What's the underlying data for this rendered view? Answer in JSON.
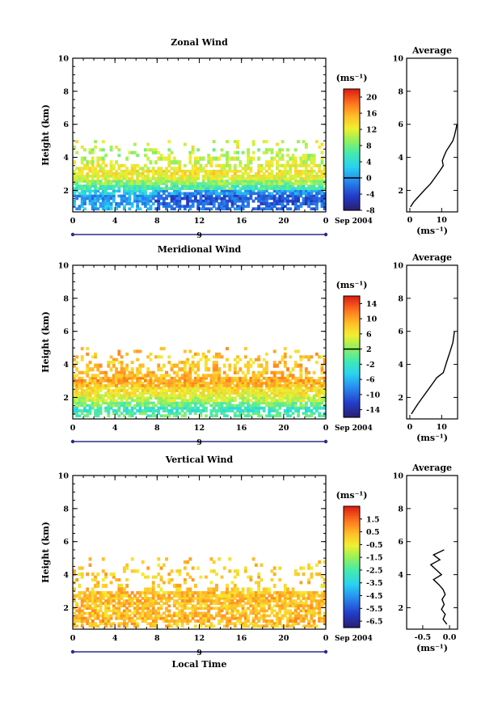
{
  "chart_data": [
    {
      "type": "heatmap",
      "title": "Zonal Wind",
      "ylabel": "Height (km)",
      "xlabel": "",
      "x_ticks": [
        "0",
        "4",
        "8",
        "12",
        "16",
        "20",
        "0"
      ],
      "y_ticks": [
        "2",
        "4",
        "6",
        "8",
        "10"
      ],
      "xlim": [
        0,
        24
      ],
      "ylim": [
        0.7,
        10
      ],
      "day_label": "9",
      "date_label": "Sep 2004",
      "colorbar": {
        "unit": "(ms⁻¹)",
        "range": [
          -8,
          22
        ],
        "ticks": [
          "-8",
          "-4",
          "0",
          "4",
          "8",
          "12",
          "16",
          "20"
        ],
        "tick_values": [
          -8,
          -4,
          0,
          4,
          8,
          12,
          16,
          20
        ],
        "zero_line": 0
      },
      "field": {
        "layers": [
          {
            "h": 0.95,
            "value": 1,
            "coverage": 0.55
          },
          {
            "h": 1.3,
            "value": 0,
            "coverage": 0.75
          },
          {
            "h": 1.6,
            "value": 0,
            "coverage": 0.8
          },
          {
            "h": 1.9,
            "value": 3,
            "coverage": 0.85
          },
          {
            "h": 2.2,
            "value": 6,
            "coverage": 0.9
          },
          {
            "h": 2.5,
            "value": 9,
            "coverage": 0.92
          },
          {
            "h": 2.8,
            "value": 12,
            "coverage": 0.92
          },
          {
            "h": 3.1,
            "value": 13,
            "coverage": 0.8
          },
          {
            "h": 3.4,
            "value": 12,
            "coverage": 0.6
          },
          {
            "h": 3.8,
            "value": 11,
            "coverage": 0.45
          },
          {
            "h": 4.3,
            "value": 10,
            "coverage": 0.3
          },
          {
            "h": 4.8,
            "value": 12,
            "coverage": 0.12
          }
        ]
      },
      "average": {
        "title": "Average",
        "xlabel": "(ms⁻¹)",
        "x_ticks": [
          "0",
          "10"
        ],
        "x_tick_values": [
          0,
          10
        ],
        "xlim": [
          -1,
          15
        ],
        "y_ticks": [
          "2",
          "4",
          "6",
          "8",
          "10"
        ],
        "profile": [
          {
            "h": 1.0,
            "v": 0.2
          },
          {
            "h": 1.3,
            "v": 1.2
          },
          {
            "h": 1.6,
            "v": 2.6
          },
          {
            "h": 2.0,
            "v": 4.5
          },
          {
            "h": 2.4,
            "v": 6.5
          },
          {
            "h": 2.8,
            "v": 8.0
          },
          {
            "h": 3.2,
            "v": 9.5
          },
          {
            "h": 3.5,
            "v": 10.5
          },
          {
            "h": 3.8,
            "v": 10.2
          },
          {
            "h": 4.1,
            "v": 10.8
          },
          {
            "h": 4.4,
            "v": 11.5
          },
          {
            "h": 4.7,
            "v": 12.5
          },
          {
            "h": 5.0,
            "v": 13.5
          },
          {
            "h": 5.3,
            "v": 14.0
          },
          {
            "h": 5.7,
            "v": 14.5
          },
          {
            "h": 6.0,
            "v": 14.8
          }
        ]
      }
    },
    {
      "type": "heatmap",
      "title": "Meridional Wind",
      "ylabel": "Height (km)",
      "xlabel": "",
      "x_ticks": [
        "0",
        "4",
        "8",
        "12",
        "16",
        "20",
        "0"
      ],
      "y_ticks": [
        "2",
        "4",
        "6",
        "8",
        "10"
      ],
      "xlim": [
        0,
        24
      ],
      "ylim": [
        0.7,
        10
      ],
      "day_label": "9",
      "date_label": "Sep 2004",
      "colorbar": {
        "unit": "(ms⁻¹)",
        "range": [
          -16,
          16
        ],
        "ticks": [
          "-14",
          "-10",
          "-6",
          "-2",
          "2",
          "6",
          "10",
          "14"
        ],
        "tick_values": [
          -14,
          -10,
          -6,
          -2,
          2,
          6,
          10,
          14
        ],
        "zero_line": 2
      },
      "field": {
        "layers": [
          {
            "h": 0.95,
            "value": 0,
            "coverage": 0.55
          },
          {
            "h": 1.3,
            "value": -2,
            "coverage": 0.8
          },
          {
            "h": 1.6,
            "value": 1,
            "coverage": 0.85
          },
          {
            "h": 1.9,
            "value": 4,
            "coverage": 0.88
          },
          {
            "h": 2.2,
            "value": 6,
            "coverage": 0.9
          },
          {
            "h": 2.5,
            "value": 7,
            "coverage": 0.92
          },
          {
            "h": 2.8,
            "value": 9,
            "coverage": 0.9
          },
          {
            "h": 3.1,
            "value": 10,
            "coverage": 0.85
          },
          {
            "h": 3.4,
            "value": 9,
            "coverage": 0.55
          },
          {
            "h": 3.8,
            "value": 9,
            "coverage": 0.45
          },
          {
            "h": 4.3,
            "value": 8,
            "coverage": 0.3
          },
          {
            "h": 4.8,
            "value": 9,
            "coverage": 0.12
          }
        ]
      },
      "average": {
        "title": "Average",
        "xlabel": "(ms⁻¹)",
        "x_ticks": [
          "0",
          "10"
        ],
        "x_tick_values": [
          0,
          10
        ],
        "xlim": [
          -1,
          15
        ],
        "y_ticks": [
          "2",
          "4",
          "6",
          "8",
          "10"
        ],
        "profile": [
          {
            "h": 1.0,
            "v": 0.5
          },
          {
            "h": 1.3,
            "v": 1.5
          },
          {
            "h": 1.6,
            "v": 2.5
          },
          {
            "h": 2.0,
            "v": 4.0
          },
          {
            "h": 2.4,
            "v": 5.5
          },
          {
            "h": 2.8,
            "v": 7.0
          },
          {
            "h": 3.2,
            "v": 8.5
          },
          {
            "h": 3.5,
            "v": 10.5
          },
          {
            "h": 3.8,
            "v": 11.0
          },
          {
            "h": 4.1,
            "v": 11.5
          },
          {
            "h": 4.4,
            "v": 12.0
          },
          {
            "h": 4.7,
            "v": 12.5
          },
          {
            "h": 5.0,
            "v": 13.0
          },
          {
            "h": 5.3,
            "v": 13.5
          },
          {
            "h": 5.7,
            "v": 13.8
          },
          {
            "h": 6.0,
            "v": 14.0
          }
        ]
      }
    },
    {
      "type": "heatmap",
      "title": "Vertical Wind",
      "ylabel": "Height (km)",
      "xlabel": "Local Time",
      "x_ticks": [
        "0",
        "4",
        "8",
        "12",
        "16",
        "20",
        "0"
      ],
      "y_ticks": [
        "2",
        "4",
        "6",
        "8",
        "10"
      ],
      "xlim": [
        0,
        24
      ],
      "ylim": [
        0.7,
        10
      ],
      "day_label": "9",
      "date_label": "Sep 2004",
      "colorbar": {
        "unit": "(ms⁻¹)",
        "range": [
          -7,
          2.5
        ],
        "ticks": [
          "-6.5",
          "-5.5",
          "-4.5",
          "-3.5",
          "-2.5",
          "-1.5",
          "-0.5",
          "0.5",
          "1.5"
        ],
        "tick_values": [
          -6.5,
          -5.5,
          -4.5,
          -3.5,
          -2.5,
          -1.5,
          -0.5,
          0.5,
          1.5
        ],
        "zero_line": null
      },
      "field": {
        "layers": [
          {
            "h": 0.95,
            "value": 0.4,
            "coverage": 0.6
          },
          {
            "h": 1.3,
            "value": 0.5,
            "coverage": 0.75
          },
          {
            "h": 1.6,
            "value": 0.3,
            "coverage": 0.75
          },
          {
            "h": 1.9,
            "value": 0.4,
            "coverage": 0.72
          },
          {
            "h": 2.2,
            "value": 0.3,
            "coverage": 0.75
          },
          {
            "h": 2.5,
            "value": 0.4,
            "coverage": 0.8
          },
          {
            "h": 2.8,
            "value": 0.3,
            "coverage": 0.85
          },
          {
            "h": 3.2,
            "value": 0.2,
            "coverage": 0.25
          },
          {
            "h": 3.7,
            "value": 0.2,
            "coverage": 0.2
          },
          {
            "h": 4.2,
            "value": 0.2,
            "coverage": 0.18
          },
          {
            "h": 4.8,
            "value": 0.1,
            "coverage": 0.12
          }
        ]
      },
      "average": {
        "title": "Average",
        "xlabel": "(ms⁻¹)",
        "x_ticks": [
          "-0.5",
          "0.0"
        ],
        "x_tick_values": [
          -0.5,
          0.0
        ],
        "xlim": [
          -0.8,
          0.15
        ],
        "y_ticks": [
          "2",
          "4",
          "6",
          "8",
          "10"
        ],
        "profile": [
          {
            "h": 1.0,
            "v": -0.05
          },
          {
            "h": 1.3,
            "v": -0.12
          },
          {
            "h": 1.6,
            "v": -0.08
          },
          {
            "h": 1.9,
            "v": -0.15
          },
          {
            "h": 2.2,
            "v": -0.1
          },
          {
            "h": 2.5,
            "v": -0.14
          },
          {
            "h": 2.8,
            "v": -0.08
          },
          {
            "h": 3.1,
            "v": -0.12
          },
          {
            "h": 3.4,
            "v": -0.2
          },
          {
            "h": 3.7,
            "v": -0.3
          },
          {
            "h": 4.0,
            "v": -0.15
          },
          {
            "h": 4.3,
            "v": -0.25
          },
          {
            "h": 4.6,
            "v": -0.35
          },
          {
            "h": 4.9,
            "v": -0.18
          },
          {
            "h": 5.2,
            "v": -0.3
          },
          {
            "h": 5.5,
            "v": -0.1
          }
        ]
      }
    }
  ]
}
